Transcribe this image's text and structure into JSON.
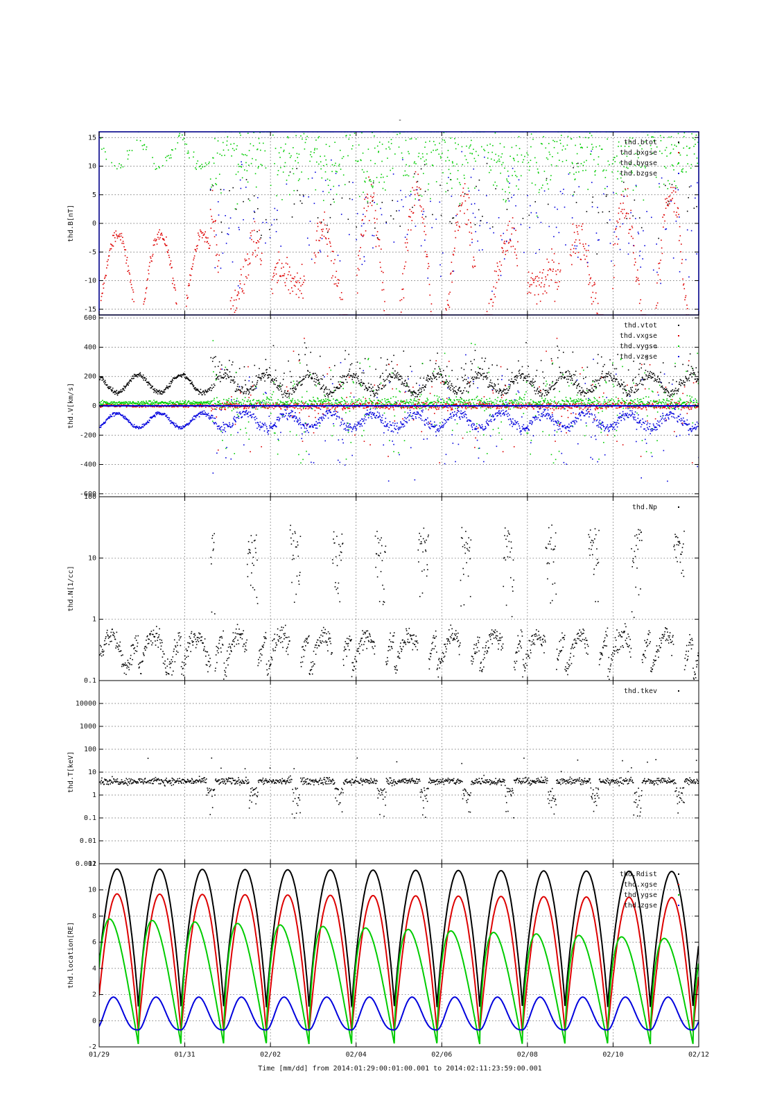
{
  "title": "-",
  "footer": {
    "text": "Time [mm/dd]  from 2014:01:29:00:01:00.001  to  2014:02:11:23:59:00.001"
  },
  "colors": {
    "black": "#000000",
    "red": "#dd0000",
    "green": "#00cc00",
    "blue": "#0000dd",
    "frame": "#000088",
    "grid": "#555555"
  },
  "x_axis": {
    "range_days": [
      0,
      14
    ],
    "tick_days": [
      0,
      2,
      4,
      6,
      8,
      10,
      12,
      14
    ],
    "tick_labels": [
      "01/29",
      "01/31",
      "02/02",
      "02/04",
      "02/06",
      "02/08",
      "02/10",
      "02/12"
    ]
  },
  "chart_data": [
    {
      "type": "scatter",
      "ylabel": "thd.B[nT]",
      "ylim": [
        -16,
        16
      ],
      "ticks": [
        -15,
        -10,
        -5,
        0,
        5,
        10,
        15
      ],
      "tick_labels": [
        "-15",
        "-10",
        "-5",
        "0",
        "5",
        "10",
        "15"
      ],
      "grid": true,
      "legend_position": "top-right",
      "series": [
        {
          "name": "thd.btot",
          "color": "#000000"
        },
        {
          "name": "thd.bxgse",
          "color": "#dd0000"
        },
        {
          "name": "thd.bygse",
          "color": "#00cc00"
        },
        {
          "name": "thd.bzgse",
          "color": "#0000dd"
        }
      ]
    },
    {
      "type": "scatter",
      "ylabel": "thd.V[km/s]",
      "ylim": [
        -620,
        620
      ],
      "ticks": [
        -600,
        -400,
        -200,
        0,
        200,
        400,
        600
      ],
      "tick_labels": [
        "-600",
        "-400",
        "-200",
        "0",
        "200",
        "400",
        "600"
      ],
      "grid": true,
      "legend_position": "top-right",
      "series": [
        {
          "name": "thd.vtot",
          "color": "#000000"
        },
        {
          "name": "thd.vxgse",
          "color": "#dd0000"
        },
        {
          "name": "thd.vygse",
          "color": "#00cc00"
        },
        {
          "name": "thd.vzgse",
          "color": "#0000dd"
        }
      ]
    },
    {
      "type": "scatter",
      "ylabel": "thd.N[1/cc]",
      "yscale": "log",
      "ylim": [
        0.1,
        100
      ],
      "ticks": [
        0.1,
        1,
        10,
        100
      ],
      "tick_labels": [
        "0.1",
        "1",
        "10",
        "100"
      ],
      "grid": true,
      "legend_position": "top-right",
      "series": [
        {
          "name": "thd.Np",
          "color": "#000000"
        }
      ]
    },
    {
      "type": "scatter",
      "ylabel": "thd.T[keV]",
      "yscale": "log",
      "ylim": [
        0.001,
        100000
      ],
      "ticks": [
        0.001,
        0.01,
        0.1,
        1,
        10,
        100,
        1000,
        10000
      ],
      "tick_labels": [
        "0.001",
        "0.01",
        "0.1",
        "1",
        "10",
        "100",
        "1000",
        "10000"
      ],
      "grid": true,
      "legend_position": "top-right",
      "series": [
        {
          "name": "thd.tkev",
          "color": "#000000"
        }
      ]
    },
    {
      "type": "line",
      "ylabel": "thd.location[RE]",
      "ylim": [
        -2,
        12
      ],
      "ticks": [
        -2,
        0,
        2,
        4,
        6,
        8,
        10,
        12
      ],
      "tick_labels": [
        "-2",
        "0",
        "2",
        "4",
        "6",
        "8",
        "10",
        "12"
      ],
      "grid": true,
      "legend_position": "top-right",
      "orbit_period_days": 0.9962,
      "series": [
        {
          "name": "thd.Rdist",
          "color": "#000000"
        },
        {
          "name": "thd.xgse",
          "color": "#dd0000"
        },
        {
          "name": "thd.ygse",
          "color": "#00cc00"
        },
        {
          "name": "thd.zgse",
          "color": "#0000dd"
        }
      ]
    }
  ]
}
